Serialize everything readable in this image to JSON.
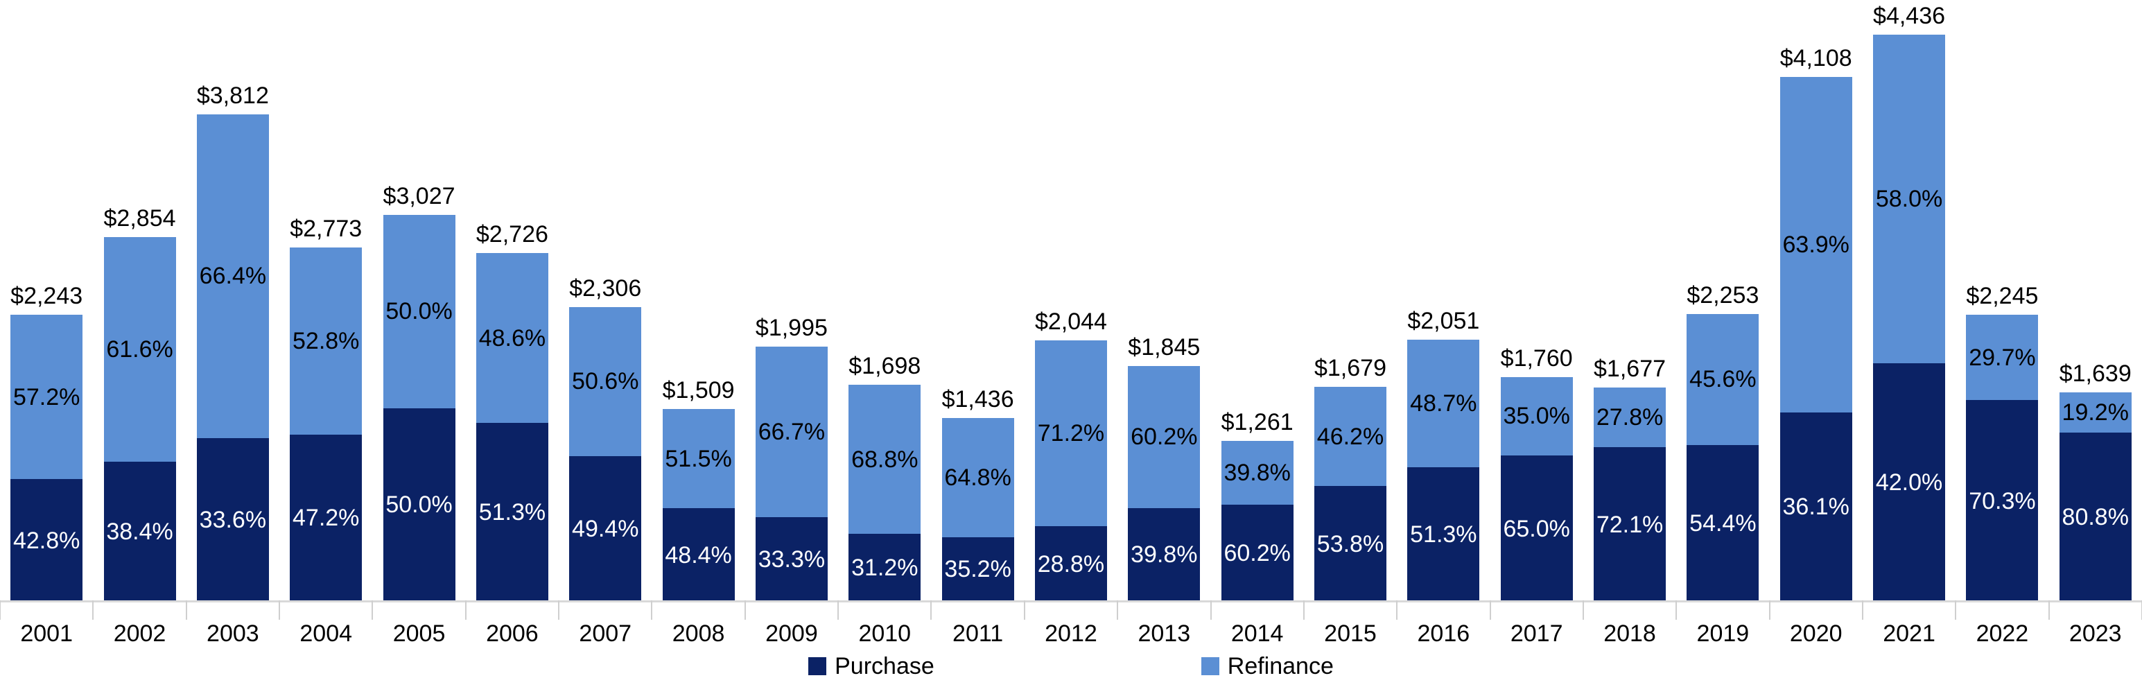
{
  "chart_data": {
    "type": "bar",
    "stacked": true,
    "orientation": "vertical",
    "title": "",
    "xlabel": "",
    "ylabel": "",
    "grid": false,
    "ylim": [
      0,
      4436
    ],
    "categories": [
      "2001",
      "2002",
      "2003",
      "2004",
      "2005",
      "2006",
      "2007",
      "2008",
      "2009",
      "2010",
      "2011",
      "2012",
      "2013",
      "2014",
      "2015",
      "2016",
      "2017",
      "2018",
      "2019",
      "2020",
      "2021",
      "2022",
      "2023"
    ],
    "totals": {
      "values": [
        2243,
        2854,
        3812,
        2773,
        3027,
        2726,
        2306,
        1509,
        1995,
        1698,
        1436,
        2044,
        1845,
        1261,
        1679,
        2051,
        1760,
        1677,
        2253,
        4108,
        4436,
        2245,
        1639
      ],
      "labels": [
        "$2,243",
        "$2,854",
        "$3,812",
        "$2,773",
        "$3,027",
        "$2,726",
        "$2,306",
        "$1,509",
        "$1,995",
        "$1,698",
        "$1,436",
        "$2,044",
        "$1,845",
        "$1,261",
        "$1,679",
        "$2,051",
        "$1,760",
        "$1,677",
        "$2,253",
        "$4,108",
        "$4,436",
        "$2,245",
        "$1,639"
      ]
    },
    "series": [
      {
        "name": "Purchase",
        "position": "bottom",
        "color": "#0B2265",
        "label_color": "#FFFFFF",
        "pct_values": [
          42.8,
          38.4,
          33.6,
          47.2,
          50.0,
          51.3,
          49.4,
          48.4,
          33.3,
          31.2,
          35.2,
          28.8,
          39.8,
          60.2,
          53.8,
          51.3,
          65.0,
          72.1,
          54.4,
          36.1,
          42.0,
          70.3,
          80.8
        ],
        "pct_labels": [
          "42.8%",
          "38.4%",
          "33.6%",
          "47.2%",
          "50.0%",
          "51.3%",
          "49.4%",
          "48.4%",
          "33.3%",
          "31.2%",
          "35.2%",
          "28.8%",
          "39.8%",
          "60.2%",
          "53.8%",
          "51.3%",
          "65.0%",
          "72.1%",
          "54.4%",
          "36.1%",
          "42.0%",
          "70.3%",
          "80.8%"
        ]
      },
      {
        "name": "Refinance",
        "position": "top",
        "color": "#5B8FD4",
        "label_color": "#000000",
        "pct_values": [
          57.2,
          61.6,
          66.4,
          52.8,
          50.0,
          48.6,
          50.6,
          51.5,
          66.7,
          68.8,
          64.8,
          71.2,
          60.2,
          39.8,
          46.2,
          48.7,
          35.0,
          27.8,
          45.6,
          63.9,
          58.0,
          29.7,
          19.2
        ],
        "pct_labels": [
          "57.2%",
          "61.6%",
          "66.4%",
          "52.8%",
          "50.0%",
          "48.6%",
          "50.6%",
          "51.5%",
          "66.7%",
          "68.8%",
          "64.8%",
          "71.2%",
          "60.2%",
          "39.8%",
          "46.2%",
          "48.7%",
          "35.0%",
          "27.8%",
          "45.6%",
          "63.9%",
          "58.0%",
          "29.7%",
          "19.2%"
        ]
      }
    ],
    "legend": {
      "position": "bottom",
      "items": [
        {
          "label": "Purchase",
          "color": "#0B2265"
        },
        {
          "label": "Refinance",
          "color": "#5B8FD4"
        }
      ]
    },
    "axis_colors": {
      "baseline": "#D9D9D9",
      "tick": "#CFCFCF"
    }
  }
}
